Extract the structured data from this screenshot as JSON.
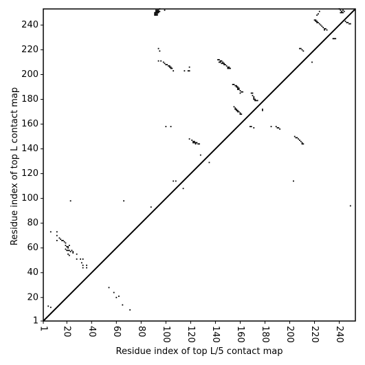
{
  "chart_data": {
    "type": "scatter",
    "title": "",
    "xlabel": "Residue index of top L/5 contact map",
    "ylabel": "Residue index of top L contact map",
    "xlim": [
      1,
      253
    ],
    "ylim": [
      1,
      253
    ],
    "x_ticks": [
      1,
      20,
      40,
      60,
      80,
      100,
      120,
      140,
      160,
      180,
      200,
      220,
      240
    ],
    "y_ticks": [
      1,
      20,
      40,
      60,
      80,
      100,
      120,
      140,
      160,
      180,
      200,
      220,
      240
    ],
    "x_tick_rotation": -90,
    "grid": false,
    "legend": "none",
    "diagonal": {
      "from": [
        1,
        1
      ],
      "to": [
        253,
        253
      ],
      "color": "#000000"
    },
    "point_color": "#000000",
    "points": [
      [
        92,
        252
      ],
      [
        93,
        252
      ],
      [
        94,
        252
      ],
      [
        95,
        253
      ],
      [
        92,
        251
      ],
      [
        93,
        251
      ],
      [
        94,
        251
      ],
      [
        95,
        251
      ],
      [
        91,
        250
      ],
      [
        92,
        250
      ],
      [
        93,
        250
      ],
      [
        94,
        250
      ],
      [
        91,
        249
      ],
      [
        92,
        249
      ],
      [
        93,
        249
      ],
      [
        91,
        248
      ],
      [
        92,
        248
      ],
      [
        93,
        248
      ],
      [
        99,
        252
      ],
      [
        240,
        253
      ],
      [
        241,
        252
      ],
      [
        242,
        251
      ],
      [
        241,
        250
      ],
      [
        243,
        252
      ],
      [
        244,
        251
      ],
      [
        242,
        250
      ],
      [
        243,
        250
      ],
      [
        222,
        248
      ],
      [
        223,
        249
      ],
      [
        224,
        251
      ],
      [
        220,
        244
      ],
      [
        221,
        244
      ],
      [
        222,
        243
      ],
      [
        223,
        242
      ],
      [
        224,
        241
      ],
      [
        225,
        240
      ],
      [
        226,
        239
      ],
      [
        227,
        238
      ],
      [
        228,
        237
      ],
      [
        228,
        236
      ],
      [
        229,
        237
      ],
      [
        230,
        236
      ],
      [
        221,
        243
      ],
      [
        222,
        242
      ],
      [
        245,
        243
      ],
      [
        246,
        242
      ],
      [
        247,
        242
      ],
      [
        248,
        241
      ],
      [
        249,
        241
      ],
      [
        235,
        229
      ],
      [
        236,
        229
      ],
      [
        237,
        229
      ],
      [
        94,
        221
      ],
      [
        95,
        219
      ],
      [
        94,
        211
      ],
      [
        96,
        211
      ],
      [
        98,
        210
      ],
      [
        99,
        209
      ],
      [
        100,
        208
      ],
      [
        101,
        208
      ],
      [
        102,
        207
      ],
      [
        103,
        207
      ],
      [
        104,
        206
      ],
      [
        105,
        205
      ],
      [
        104,
        205
      ],
      [
        103,
        206
      ],
      [
        106,
        203
      ],
      [
        115,
        203
      ],
      [
        118,
        203
      ],
      [
        119,
        203
      ],
      [
        119,
        206
      ],
      [
        142,
        212
      ],
      [
        143,
        212
      ],
      [
        144,
        211
      ],
      [
        145,
        211
      ],
      [
        146,
        210
      ],
      [
        147,
        209
      ],
      [
        145,
        209
      ],
      [
        146,
        209
      ],
      [
        147,
        208
      ],
      [
        148,
        208
      ],
      [
        149,
        207
      ],
      [
        150,
        206
      ],
      [
        151,
        206
      ],
      [
        152,
        205
      ],
      [
        150,
        205
      ],
      [
        151,
        205
      ],
      [
        143,
        210
      ],
      [
        144,
        210
      ],
      [
        208,
        221
      ],
      [
        209,
        221
      ],
      [
        210,
        220
      ],
      [
        211,
        219
      ],
      [
        218,
        210
      ],
      [
        154,
        192
      ],
      [
        155,
        192
      ],
      [
        156,
        191
      ],
      [
        157,
        191
      ],
      [
        157,
        190
      ],
      [
        158,
        190
      ],
      [
        158,
        189
      ],
      [
        159,
        188
      ],
      [
        160,
        187
      ],
      [
        160,
        185
      ],
      [
        161,
        186
      ],
      [
        162,
        186
      ],
      [
        158,
        188
      ],
      [
        159,
        189
      ],
      [
        169,
        185
      ],
      [
        170,
        185
      ],
      [
        170,
        183
      ],
      [
        171,
        182
      ],
      [
        171,
        180
      ],
      [
        172,
        179
      ],
      [
        173,
        179
      ],
      [
        174,
        179
      ],
      [
        172,
        180
      ],
      [
        171,
        181
      ],
      [
        178,
        172
      ],
      [
        178,
        171
      ],
      [
        155,
        174
      ],
      [
        156,
        173
      ],
      [
        157,
        172
      ],
      [
        158,
        171
      ],
      [
        159,
        170
      ],
      [
        160,
        169
      ],
      [
        160,
        168
      ],
      [
        161,
        168
      ],
      [
        157,
        171
      ],
      [
        158,
        170
      ],
      [
        156,
        172
      ],
      [
        168,
        158
      ],
      [
        169,
        158
      ],
      [
        171,
        157
      ],
      [
        189,
        158
      ],
      [
        190,
        157
      ],
      [
        191,
        157
      ],
      [
        192,
        156
      ],
      [
        185,
        158
      ],
      [
        204,
        150
      ],
      [
        205,
        149
      ],
      [
        206,
        149
      ],
      [
        207,
        148
      ],
      [
        208,
        147
      ],
      [
        209,
        146
      ],
      [
        210,
        145
      ],
      [
        211,
        144
      ],
      [
        210,
        144
      ],
      [
        100,
        158
      ],
      [
        104,
        158
      ],
      [
        119,
        148
      ],
      [
        121,
        147
      ],
      [
        122,
        146
      ],
      [
        123,
        146
      ],
      [
        124,
        145
      ],
      [
        125,
        145
      ],
      [
        126,
        144
      ],
      [
        127,
        144
      ],
      [
        122,
        145
      ],
      [
        123,
        145
      ],
      [
        124,
        144
      ],
      [
        128,
        135
      ],
      [
        135,
        129
      ],
      [
        106,
        114
      ],
      [
        108,
        114
      ],
      [
        114,
        108
      ],
      [
        203,
        114
      ],
      [
        249,
        94
      ],
      [
        88,
        93
      ],
      [
        23,
        98
      ],
      [
        66,
        98
      ],
      [
        7,
        73
      ],
      [
        12,
        73
      ],
      [
        12,
        70
      ],
      [
        12,
        66
      ],
      [
        14,
        68
      ],
      [
        15,
        67
      ],
      [
        16,
        66
      ],
      [
        17,
        66
      ],
      [
        18,
        65
      ],
      [
        19,
        64
      ],
      [
        19,
        62
      ],
      [
        20,
        61
      ],
      [
        21,
        60
      ],
      [
        19,
        59
      ],
      [
        20,
        58
      ],
      [
        21,
        58
      ],
      [
        22,
        58
      ],
      [
        21,
        61
      ],
      [
        22,
        62
      ],
      [
        24,
        58
      ],
      [
        25,
        57
      ],
      [
        25,
        56
      ],
      [
        28,
        55
      ],
      [
        28,
        51
      ],
      [
        31,
        51
      ],
      [
        33,
        51
      ],
      [
        32,
        48
      ],
      [
        33,
        46
      ],
      [
        36,
        46
      ],
      [
        33,
        44
      ],
      [
        36,
        44
      ],
      [
        21,
        55
      ],
      [
        22,
        54
      ],
      [
        23,
        57
      ],
      [
        54,
        28
      ],
      [
        58,
        24
      ],
      [
        60,
        20
      ],
      [
        62,
        21
      ],
      [
        65,
        14
      ],
      [
        71,
        10
      ],
      [
        5,
        13
      ],
      [
        7,
        12
      ]
    ]
  }
}
